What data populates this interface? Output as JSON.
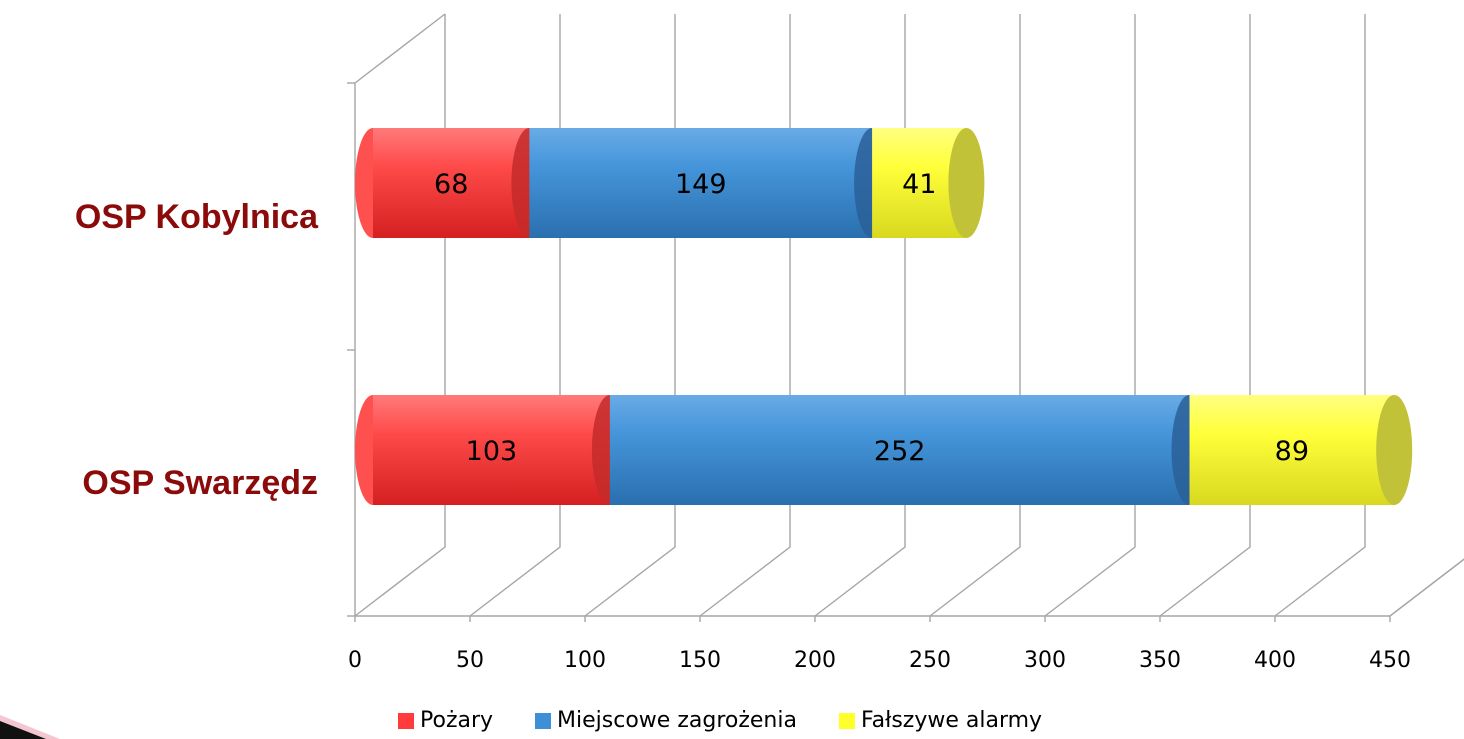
{
  "chart_data": {
    "type": "bar",
    "orientation": "horizontal",
    "stacked": true,
    "style": "3d-cylinder",
    "categories": [
      "OSP Kobylnica",
      "OSP Swarzędz"
    ],
    "series": [
      {
        "name": "Pożary",
        "values": [
          68,
          103
        ],
        "color": "#ff4040"
      },
      {
        "name": "Miejscowe zagrożenia",
        "values": [
          149,
          252
        ],
        "color": "#3f8fd6"
      },
      {
        "name": "Fałszywe alarmy",
        "values": [
          41,
          89
        ],
        "color": "#ffff33"
      }
    ],
    "xlim": [
      0,
      450
    ],
    "x_ticks": [
      "0",
      "50",
      "100",
      "150",
      "200",
      "250",
      "300",
      "350",
      "400",
      "450"
    ],
    "grid": true,
    "legend_position": "bottom",
    "title": "",
    "xlabel": "",
    "ylabel": ""
  }
}
